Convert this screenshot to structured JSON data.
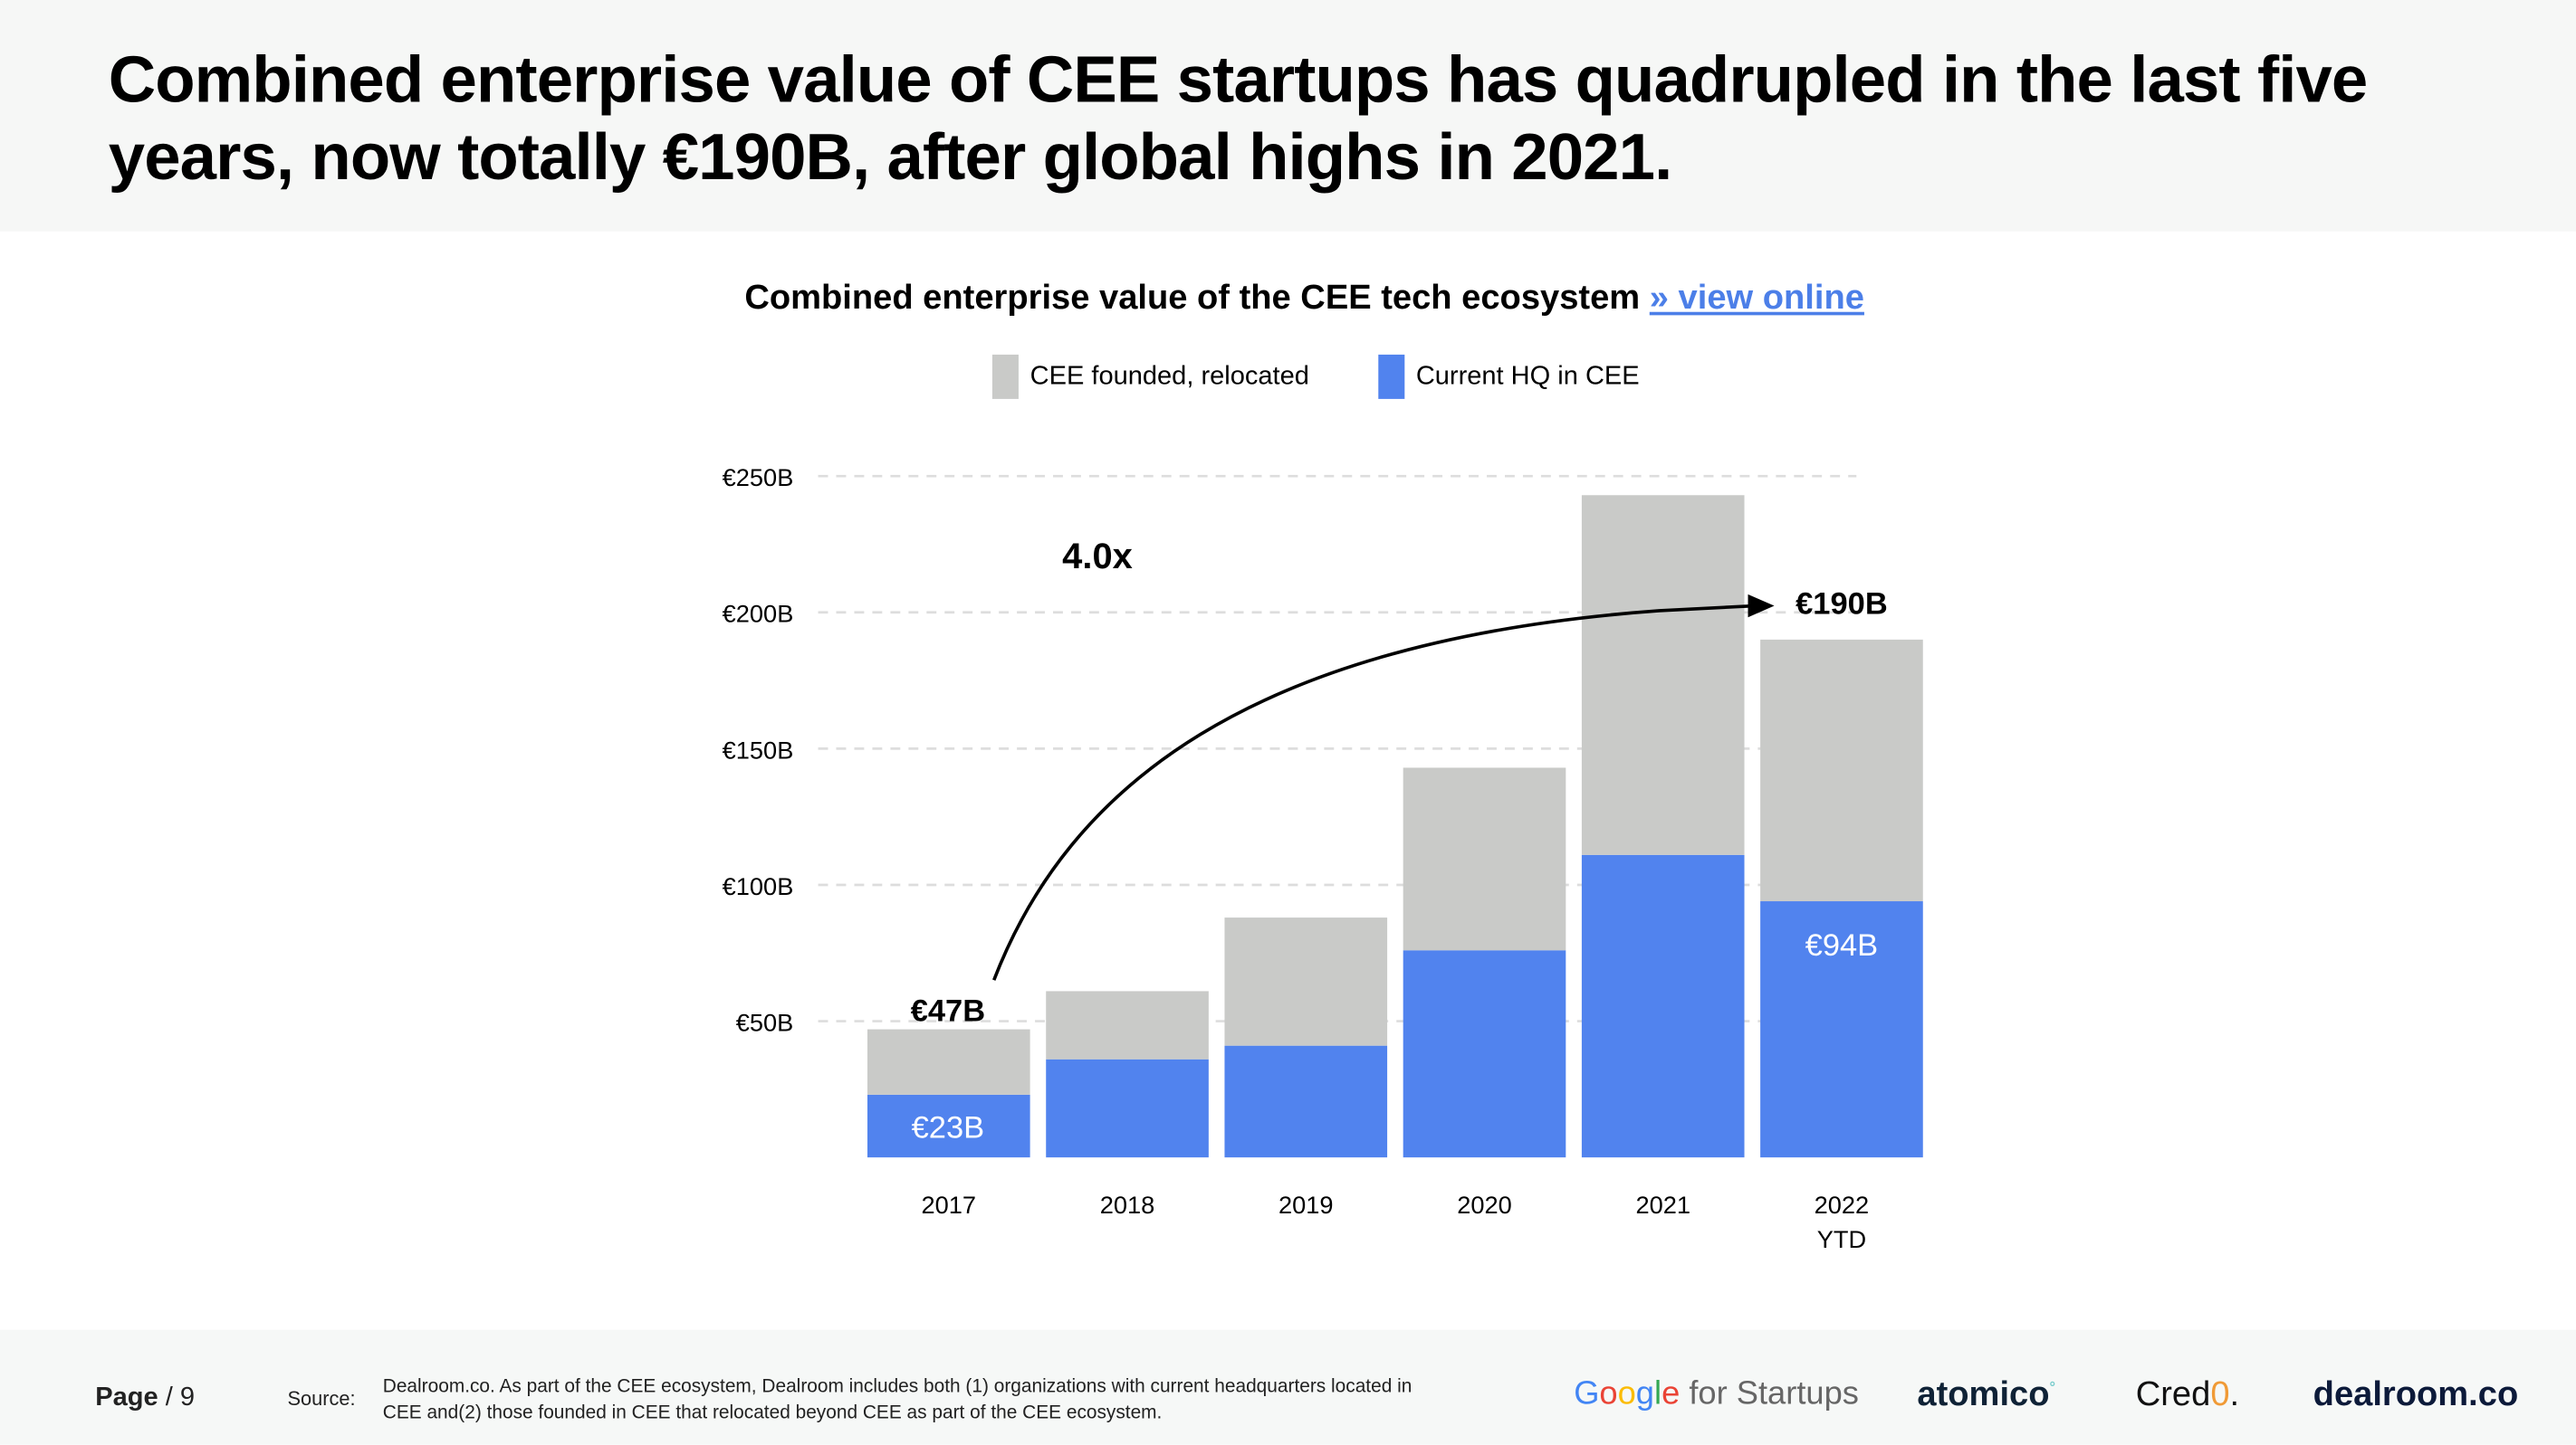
{
  "headline": "Combined enterprise value of CEE startups has quadrupled in the last five years, now totally €190B, after global highs in 2021.",
  "chart_data": {
    "type": "bar",
    "stacked": true,
    "title": "Combined enterprise value of the CEE tech ecosystem",
    "title_link": "» view online",
    "categories": [
      "2017",
      "2018",
      "2019",
      "2020",
      "2021",
      "2022 YTD"
    ],
    "series": [
      {
        "name": "Current HQ in CEE",
        "color": "#5183ee",
        "values": [
          23,
          36,
          41,
          76,
          111,
          94
        ]
      },
      {
        "name": "CEE founded, relocated",
        "color": "#c9cac8",
        "values": [
          24,
          25,
          47,
          67,
          132,
          96
        ]
      }
    ],
    "yticks": [
      "€50B",
      "€100B",
      "€150B",
      "€200B",
      "€250B"
    ],
    "ytick_values": [
      50,
      100,
      150,
      200,
      250
    ],
    "ylim": [
      0,
      250
    ],
    "grid": "dashed horizontal",
    "legend_position": "top",
    "annotations": {
      "start_total": "€47B",
      "end_total": "€190B",
      "multiplier": "4.0x",
      "label_2017_hq": "€23B",
      "label_2022_hq": "€94B"
    }
  },
  "footer": {
    "page_label": "Page",
    "page_number": "/ 9",
    "source_label": "Source:",
    "source_text": "Dealroom.co. As part of the CEE ecosystem, Dealroom includes both (1) organizations with current headquarters located in CEE and(2)  those founded in CEE that relocated beyond CEE as part of  the CEE ecosystem.",
    "logos": [
      "Google for Startups",
      "atomico",
      "Credo.",
      "dealroom.co"
    ]
  }
}
